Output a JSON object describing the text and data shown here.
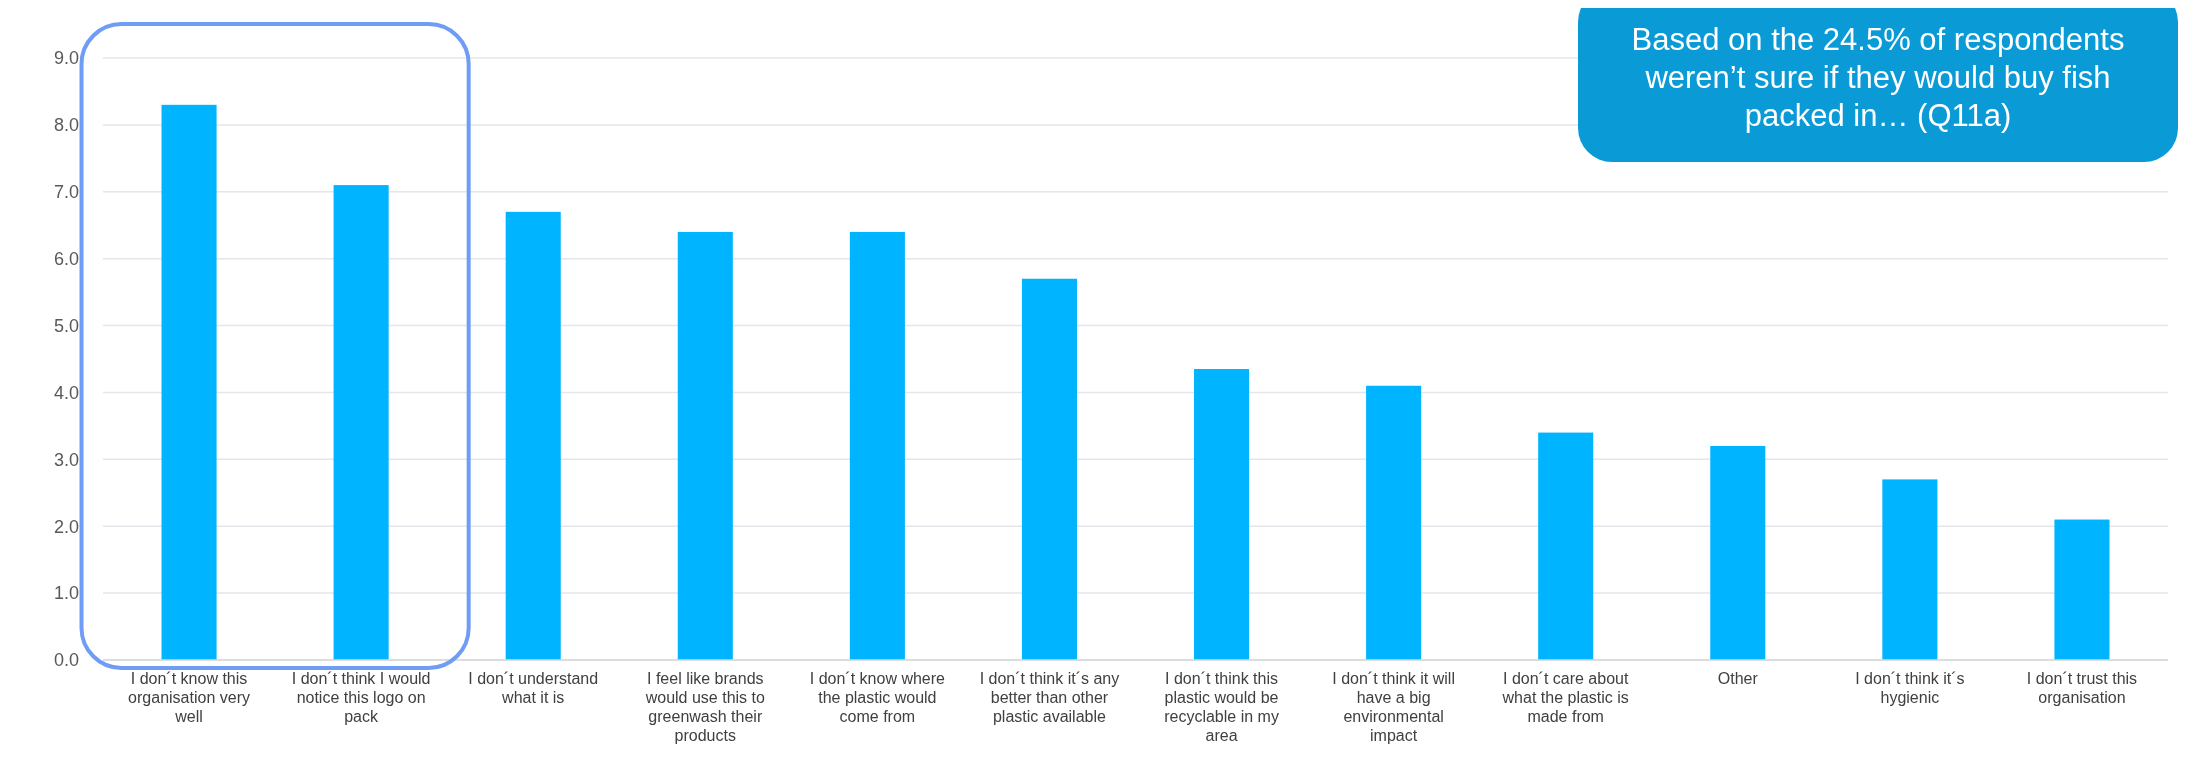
{
  "chart_data": {
    "type": "bar",
    "categories": [
      "I don´t know this organisation very well",
      "I don´t think I would notice this logo on pack",
      "I don´t understand what it is",
      "I feel like brands would use this to greenwash their products",
      "I don´t know where the plastic would come from",
      "I don´t think it´s any better than other plastic available",
      "I don´t think this plastic would be recyclable in my area",
      "I don´t think it will have a big environmental impact",
      "I don´t care about what the plastic is made from",
      "Other",
      "I don´t think it´s hygienic",
      "I don´t trust this organisation"
    ],
    "values": [
      8.3,
      7.1,
      6.7,
      6.4,
      6.4,
      5.7,
      4.35,
      4.1,
      3.4,
      3.2,
      2.7,
      2.1
    ],
    "color": "#00b4ff",
    "ylim": [
      0,
      9
    ],
    "yticks": [
      {
        "value": 0,
        "label": "0.0"
      },
      {
        "value": 1,
        "label": "1.0"
      },
      {
        "value": 2,
        "label": "2.0"
      },
      {
        "value": 3,
        "label": "3.0"
      },
      {
        "value": 4,
        "label": "4.0"
      },
      {
        "value": 5,
        "label": "5.0"
      },
      {
        "value": 6,
        "label": "6.0"
      },
      {
        "value": 7,
        "label": "7.0"
      },
      {
        "value": 8,
        "label": "8.0"
      },
      {
        "value": 9,
        "label": "9.0"
      }
    ],
    "grid": "y",
    "annotations": [
      "Based on the 24.5% of respondents weren’t sure if they would buy fish packed in… (Q11a)"
    ]
  }
}
